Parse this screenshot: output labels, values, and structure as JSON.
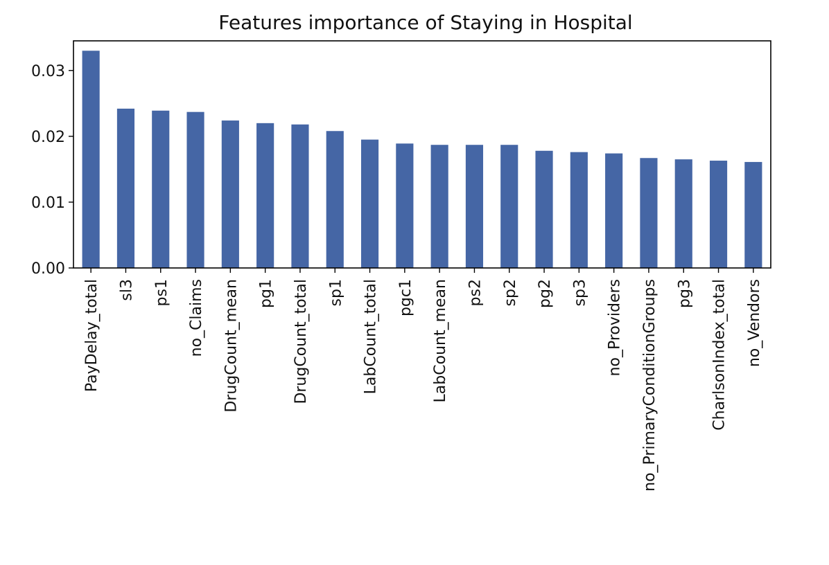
{
  "chart_data": {
    "type": "bar",
    "title": "Features importance of Staying in Hospital",
    "xlabel": "",
    "ylabel": "",
    "categories": [
      "PayDelay_total",
      "sl3",
      "ps1",
      "no_Claims",
      "DrugCount_mean",
      "pg1",
      "DrugCount_total",
      "sp1",
      "LabCount_total",
      "pgc1",
      "LabCount_mean",
      "ps2",
      "sp2",
      "pg2",
      "sp3",
      "no_Providers",
      "no_PrimaryConditionGroups",
      "pg3",
      "CharlsonIndex_total",
      "no_Vendors"
    ],
    "values": [
      0.033,
      0.0242,
      0.0239,
      0.0237,
      0.0224,
      0.022,
      0.0218,
      0.0208,
      0.0195,
      0.0189,
      0.0187,
      0.0187,
      0.0187,
      0.0178,
      0.0176,
      0.0174,
      0.0167,
      0.0165,
      0.0163,
      0.0161
    ],
    "ylim": [
      0,
      0.0345
    ],
    "yticks": [
      0.0,
      0.01,
      0.02,
      0.03
    ],
    "ytick_labels": [
      "0.00",
      "0.01",
      "0.02",
      "0.03"
    ],
    "bar_color": "#4566a5",
    "grid": false,
    "legend": "none"
  }
}
